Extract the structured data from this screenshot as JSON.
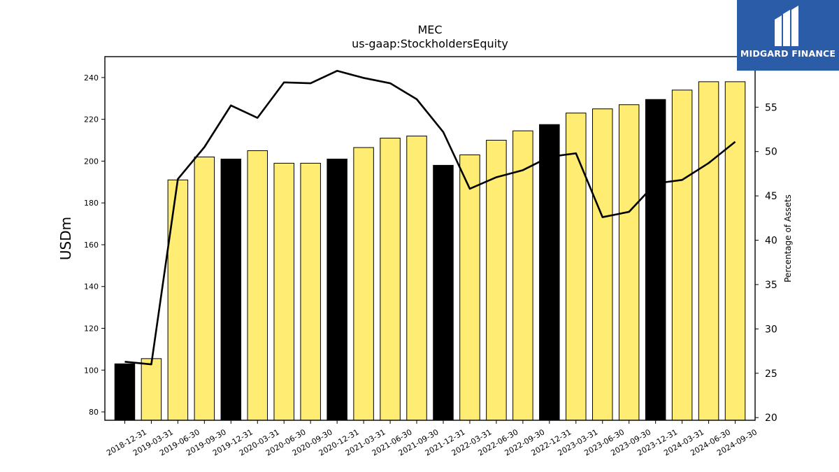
{
  "chart_data": {
    "type": "bar",
    "title": "MEC",
    "subtitle": "us-gaap:StockholdersEquity",
    "ylabel": "USDm",
    "y2label": "Percentage of Assets",
    "ylim": [
      76,
      250
    ],
    "y2lim": [
      19.7,
      60.7
    ],
    "yticks": [
      80,
      100,
      120,
      140,
      160,
      180,
      200,
      220,
      240
    ],
    "y2ticks": [
      20,
      25,
      30,
      35,
      40,
      45,
      50,
      55
    ],
    "categories": [
      "2018-12-31",
      "2019-03-31",
      "2019-06-30",
      "2019-09-30",
      "2019-12-31",
      "2020-03-31",
      "2020-06-30",
      "2020-09-30",
      "2020-12-31",
      "2021-03-31",
      "2021-06-30",
      "2021-09-30",
      "2021-12-31",
      "2022-03-31",
      "2022-06-30",
      "2022-09-30",
      "2022-12-31",
      "2023-03-31",
      "2023-06-30",
      "2023-09-30",
      "2023-12-31",
      "2024-03-31",
      "2024-06-30",
      "2024-09-30"
    ],
    "series": [
      {
        "type": "bar",
        "values": [
          103,
          105.5,
          191,
          202,
          201,
          205,
          199,
          199,
          201,
          206.5,
          211,
          212,
          198,
          203,
          210,
          214.5,
          217.5,
          223,
          225,
          227,
          229.5,
          234,
          238,
          238
        ]
      },
      {
        "type": "line",
        "values": [
          26.3,
          26.0,
          46.9,
          50.5,
          55.2,
          53.8,
          57.8,
          57.7,
          59.1,
          58.3,
          57.7,
          55.9,
          52.2,
          45.8,
          47.1,
          47.9,
          49.4,
          49.8,
          42.6,
          43.2,
          46.4,
          46.8,
          48.7,
          51.1
        ]
      }
    ],
    "bar_colors": {
      "year_end": "#000000",
      "quarter": "#ffec72"
    },
    "line_color": "#000000",
    "grid": false
  },
  "logo": {
    "text": "MIDGARD FINANCE",
    "background": "#2b5ca8"
  }
}
